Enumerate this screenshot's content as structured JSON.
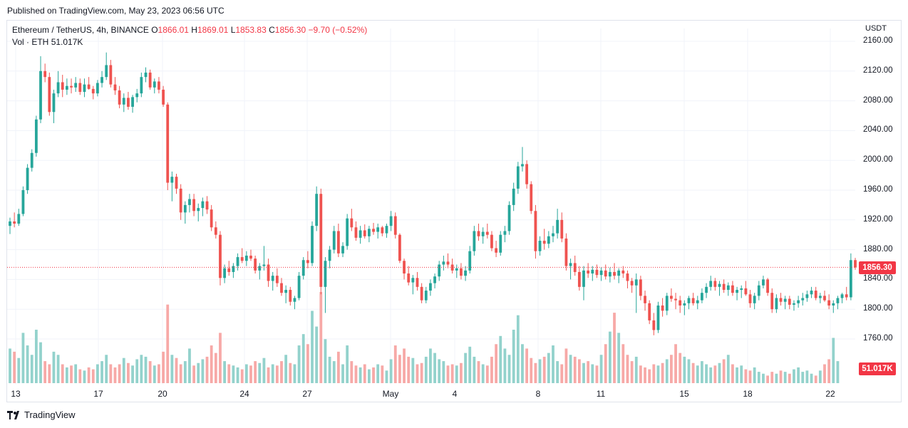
{
  "header": {
    "published": "Published on TradingView.com, May 23, 2023 06:56 UTC"
  },
  "legend": {
    "symbol": "Ethereum / TetherUS, 4h, BINANCE",
    "o_label": "O",
    "o_value": "1866.01",
    "h_label": "H",
    "h_value": "1869.01",
    "l_label": "L",
    "l_value": "1853.83",
    "c_label": "C",
    "c_value": "1856.30",
    "change": "−9.70 (−0.52%)",
    "vol_label": "Vol · ETH",
    "vol_value": "51.017K"
  },
  "axis": {
    "currency": "USDT"
  },
  "price_tag": "1856.30",
  "vol_tag": "51.017K",
  "footer": {
    "brand": "TradingView"
  },
  "colors": {
    "up": "#26a69a",
    "down": "#ef5350",
    "up_vol": "#93d2cc",
    "down_vol": "#f7a9a7",
    "grid": "#f0f3fa",
    "last_price": "#f23645"
  },
  "chart_data": {
    "type": "candlestick",
    "y_ticks": [
      "2160.00",
      "2120.00",
      "2080.00",
      "2040.00",
      "2000.00",
      "1960.00",
      "1920.00",
      "1880.00",
      "1840.00",
      "1800.00",
      "1760.00"
    ],
    "ylim": [
      1720,
      2180
    ],
    "x_ticks": [
      "13",
      "17",
      "20",
      "24",
      "27",
      "May",
      "4",
      "8",
      "11",
      "15",
      "18",
      "22"
    ],
    "last_price": 1856.3,
    "ohlc": [
      [
        1912,
        1923,
        1901,
        1918
      ],
      [
        1918,
        1930,
        1910,
        1915
      ],
      [
        1915,
        1935,
        1912,
        1928
      ],
      [
        1928,
        1965,
        1925,
        1960
      ],
      [
        1960,
        1995,
        1955,
        1990
      ],
      [
        1990,
        2015,
        1985,
        2010
      ],
      [
        2010,
        2060,
        2005,
        2055
      ],
      [
        2055,
        2140,
        2050,
        2120
      ],
      [
        2120,
        2130,
        2105,
        2112
      ],
      [
        2112,
        2118,
        2060,
        2065
      ],
      [
        2065,
        2095,
        2050,
        2090
      ],
      [
        2090,
        2120,
        2085,
        2105
      ],
      [
        2105,
        2115,
        2085,
        2095
      ],
      [
        2095,
        2110,
        2088,
        2100
      ],
      [
        2100,
        2110,
        2090,
        2098
      ],
      [
        2098,
        2112,
        2092,
        2104
      ],
      [
        2104,
        2110,
        2088,
        2092
      ],
      [
        2092,
        2110,
        2085,
        2102
      ],
      [
        2102,
        2112,
        2095,
        2096
      ],
      [
        2096,
        2100,
        2082,
        2090
      ],
      [
        2090,
        2108,
        2086,
        2104
      ],
      [
        2104,
        2120,
        2098,
        2112
      ],
      [
        2112,
        2145,
        2108,
        2128
      ],
      [
        2128,
        2135,
        2098,
        2102
      ],
      [
        2102,
        2112,
        2088,
        2094
      ],
      [
        2094,
        2100,
        2070,
        2075
      ],
      [
        2075,
        2090,
        2065,
        2084
      ],
      [
        2084,
        2092,
        2068,
        2072
      ],
      [
        2072,
        2088,
        2064,
        2085
      ],
      [
        2085,
        2096,
        2078,
        2090
      ],
      [
        2090,
        2118,
        2085,
        2112
      ],
      [
        2112,
        2125,
        2105,
        2118
      ],
      [
        2118,
        2122,
        2095,
        2098
      ],
      [
        2098,
        2110,
        2090,
        2106
      ],
      [
        2106,
        2112,
        2090,
        2095
      ],
      [
        2095,
        2100,
        2072,
        2075
      ],
      [
        2075,
        2078,
        1960,
        1970
      ],
      [
        1970,
        1985,
        1945,
        1978
      ],
      [
        1978,
        1982,
        1955,
        1962
      ],
      [
        1962,
        1968,
        1920,
        1930
      ],
      [
        1930,
        1945,
        1915,
        1940
      ],
      [
        1940,
        1955,
        1930,
        1948
      ],
      [
        1948,
        1955,
        1925,
        1932
      ],
      [
        1932,
        1942,
        1918,
        1936
      ],
      [
        1936,
        1950,
        1925,
        1945
      ],
      [
        1945,
        1952,
        1928,
        1934
      ],
      [
        1934,
        1940,
        1905,
        1910
      ],
      [
        1910,
        1918,
        1895,
        1900
      ],
      [
        1900,
        1905,
        1832,
        1842
      ],
      [
        1842,
        1860,
        1835,
        1855
      ],
      [
        1855,
        1865,
        1845,
        1850
      ],
      [
        1850,
        1862,
        1842,
        1858
      ],
      [
        1858,
        1875,
        1852,
        1870
      ],
      [
        1870,
        1882,
        1862,
        1865
      ],
      [
        1865,
        1878,
        1858,
        1872
      ],
      [
        1872,
        1880,
        1865,
        1868
      ],
      [
        1868,
        1872,
        1848,
        1852
      ],
      [
        1852,
        1862,
        1840,
        1858
      ],
      [
        1858,
        1885,
        1852,
        1860
      ],
      [
        1860,
        1868,
        1830,
        1838
      ],
      [
        1838,
        1850,
        1825,
        1845
      ],
      [
        1845,
        1855,
        1830,
        1835
      ],
      [
        1835,
        1842,
        1818,
        1822
      ],
      [
        1822,
        1832,
        1808,
        1826
      ],
      [
        1826,
        1830,
        1805,
        1810
      ],
      [
        1810,
        1818,
        1800,
        1815
      ],
      [
        1815,
        1850,
        1812,
        1845
      ],
      [
        1845,
        1870,
        1840,
        1866
      ],
      [
        1866,
        1878,
        1855,
        1862
      ],
      [
        1862,
        1918,
        1858,
        1912
      ],
      [
        1912,
        1965,
        1905,
        1955
      ],
      [
        1955,
        1962,
        1820,
        1830
      ],
      [
        1830,
        1870,
        1795,
        1865
      ],
      [
        1865,
        1885,
        1855,
        1880
      ],
      [
        1880,
        1912,
        1875,
        1905
      ],
      [
        1905,
        1915,
        1870,
        1875
      ],
      [
        1875,
        1890,
        1870,
        1885
      ],
      [
        1885,
        1928,
        1880,
        1922
      ],
      [
        1922,
        1935,
        1905,
        1910
      ],
      [
        1910,
        1918,
        1892,
        1896
      ],
      [
        1896,
        1912,
        1888,
        1906
      ],
      [
        1906,
        1914,
        1895,
        1898
      ],
      [
        1898,
        1912,
        1890,
        1908
      ],
      [
        1908,
        1916,
        1900,
        1904
      ],
      [
        1904,
        1915,
        1895,
        1910
      ],
      [
        1910,
        1912,
        1898,
        1902
      ],
      [
        1902,
        1915,
        1896,
        1912
      ],
      [
        1912,
        1932,
        1905,
        1925
      ],
      [
        1925,
        1930,
        1895,
        1900
      ],
      [
        1900,
        1902,
        1862,
        1865
      ],
      [
        1865,
        1868,
        1840,
        1848
      ],
      [
        1848,
        1858,
        1832,
        1836
      ],
      [
        1836,
        1846,
        1820,
        1842
      ],
      [
        1842,
        1850,
        1825,
        1830
      ],
      [
        1830,
        1835,
        1808,
        1812
      ],
      [
        1812,
        1830,
        1808,
        1825
      ],
      [
        1825,
        1840,
        1818,
        1835
      ],
      [
        1835,
        1848,
        1828,
        1844
      ],
      [
        1844,
        1865,
        1838,
        1860
      ],
      [
        1860,
        1872,
        1852,
        1864
      ],
      [
        1864,
        1875,
        1855,
        1860
      ],
      [
        1860,
        1868,
        1848,
        1852
      ],
      [
        1852,
        1860,
        1842,
        1855
      ],
      [
        1855,
        1862,
        1840,
        1845
      ],
      [
        1845,
        1858,
        1838,
        1852
      ],
      [
        1852,
        1885,
        1848,
        1878
      ],
      [
        1878,
        1912,
        1872,
        1905
      ],
      [
        1905,
        1915,
        1892,
        1898
      ],
      [
        1898,
        1910,
        1888,
        1904
      ],
      [
        1904,
        1915,
        1895,
        1900
      ],
      [
        1900,
        1905,
        1878,
        1882
      ],
      [
        1882,
        1892,
        1870,
        1876
      ],
      [
        1876,
        1905,
        1872,
        1900
      ],
      [
        1900,
        1912,
        1890,
        1905
      ],
      [
        1905,
        1945,
        1900,
        1940
      ],
      [
        1940,
        1970,
        1932,
        1962
      ],
      [
        1962,
        1998,
        1955,
        1992
      ],
      [
        1992,
        2018,
        1985,
        1995
      ],
      [
        1995,
        2000,
        1962,
        1968
      ],
      [
        1968,
        1972,
        1928,
        1932
      ],
      [
        1932,
        1940,
        1868,
        1878
      ],
      [
        1878,
        1898,
        1872,
        1892
      ],
      [
        1892,
        1908,
        1880,
        1888
      ],
      [
        1888,
        1905,
        1882,
        1898
      ],
      [
        1898,
        1912,
        1890,
        1902
      ],
      [
        1902,
        1935,
        1895,
        1920
      ],
      [
        1920,
        1930,
        1890,
        1895
      ],
      [
        1895,
        1902,
        1852,
        1858
      ],
      [
        1858,
        1868,
        1840,
        1862
      ],
      [
        1862,
        1872,
        1845,
        1850
      ],
      [
        1850,
        1858,
        1825,
        1830
      ],
      [
        1830,
        1858,
        1812,
        1852
      ],
      [
        1852,
        1862,
        1842,
        1848
      ],
      [
        1848,
        1858,
        1838,
        1853
      ],
      [
        1853,
        1860,
        1842,
        1846
      ],
      [
        1846,
        1856,
        1838,
        1852
      ],
      [
        1852,
        1860,
        1840,
        1844
      ],
      [
        1844,
        1856,
        1836,
        1850
      ],
      [
        1850,
        1862,
        1840,
        1845
      ],
      [
        1845,
        1855,
        1835,
        1852
      ],
      [
        1852,
        1858,
        1842,
        1848
      ],
      [
        1848,
        1852,
        1828,
        1838
      ],
      [
        1838,
        1842,
        1822,
        1832
      ],
      [
        1832,
        1848,
        1795,
        1840
      ],
      [
        1840,
        1845,
        1812,
        1818
      ],
      [
        1818,
        1825,
        1798,
        1808
      ],
      [
        1808,
        1812,
        1780,
        1785
      ],
      [
        1785,
        1795,
        1765,
        1772
      ],
      [
        1772,
        1810,
        1768,
        1805
      ],
      [
        1805,
        1815,
        1790,
        1798
      ],
      [
        1798,
        1822,
        1792,
        1818
      ],
      [
        1818,
        1828,
        1810,
        1814
      ],
      [
        1814,
        1822,
        1800,
        1812
      ],
      [
        1812,
        1818,
        1795,
        1805
      ],
      [
        1805,
        1812,
        1792,
        1808
      ],
      [
        1808,
        1818,
        1800,
        1815
      ],
      [
        1815,
        1822,
        1805,
        1808
      ],
      [
        1808,
        1818,
        1800,
        1812
      ],
      [
        1812,
        1828,
        1808,
        1822
      ],
      [
        1822,
        1835,
        1815,
        1830
      ],
      [
        1830,
        1845,
        1825,
        1838
      ],
      [
        1838,
        1842,
        1825,
        1830
      ],
      [
        1830,
        1838,
        1818,
        1834
      ],
      [
        1834,
        1840,
        1822,
        1826
      ],
      [
        1826,
        1836,
        1818,
        1832
      ],
      [
        1832,
        1838,
        1818,
        1822
      ],
      [
        1822,
        1830,
        1812,
        1826
      ],
      [
        1826,
        1832,
        1815,
        1828
      ],
      [
        1828,
        1838,
        1818,
        1820
      ],
      [
        1820,
        1826,
        1802,
        1808
      ],
      [
        1808,
        1822,
        1800,
        1818
      ],
      [
        1818,
        1838,
        1812,
        1832
      ],
      [
        1832,
        1845,
        1828,
        1840
      ],
      [
        1840,
        1842,
        1818,
        1822
      ],
      [
        1822,
        1828,
        1795,
        1800
      ],
      [
        1800,
        1820,
        1795,
        1815
      ],
      [
        1815,
        1822,
        1805,
        1810
      ],
      [
        1810,
        1818,
        1800,
        1814
      ],
      [
        1814,
        1818,
        1800,
        1806
      ],
      [
        1806,
        1812,
        1798,
        1808
      ],
      [
        1808,
        1818,
        1802,
        1812
      ],
      [
        1812,
        1822,
        1805,
        1815
      ],
      [
        1815,
        1825,
        1810,
        1820
      ],
      [
        1820,
        1830,
        1815,
        1825
      ],
      [
        1825,
        1830,
        1812,
        1815
      ],
      [
        1815,
        1822,
        1808,
        1818
      ],
      [
        1818,
        1825,
        1810,
        1812
      ],
      [
        1812,
        1820,
        1800,
        1805
      ],
      [
        1805,
        1812,
        1795,
        1808
      ],
      [
        1808,
        1818,
        1800,
        1815
      ],
      [
        1815,
        1822,
        1808,
        1820
      ],
      [
        1820,
        1830,
        1812,
        1816
      ],
      [
        1816,
        1875,
        1812,
        1866
      ],
      [
        1866,
        1869,
        1853,
        1856
      ]
    ],
    "volume": [
      55,
      50,
      40,
      80,
      60,
      45,
      85,
      65,
      35,
      30,
      50,
      45,
      30,
      25,
      28,
      30,
      22,
      20,
      25,
      22,
      30,
      35,
      45,
      30,
      25,
      30,
      40,
      32,
      28,
      38,
      45,
      42,
      35,
      28,
      30,
      50,
      125,
      45,
      40,
      30,
      35,
      55,
      28,
      32,
      38,
      42,
      60,
      48,
      80,
      35,
      30,
      28,
      25,
      22,
      30,
      28,
      35,
      32,
      40,
      25,
      30,
      28,
      35,
      45,
      32,
      30,
      60,
      78,
      62,
      115,
      90,
      145,
      70,
      42,
      35,
      50,
      30,
      60,
      35,
      28,
      25,
      30,
      22,
      25,
      30,
      28,
      20,
      38,
      60,
      45,
      55,
      42,
      40,
      30,
      32,
      42,
      55,
      48,
      38,
      35,
      28,
      30,
      28,
      32,
      48,
      58,
      42,
      35,
      30,
      28,
      42,
      62,
      75,
      55,
      45,
      85,
      108,
      62,
      55,
      40,
      32,
      38,
      42,
      48,
      60,
      35,
      30,
      55,
      45,
      42,
      38,
      32,
      35,
      30,
      28,
      45,
      62,
      82,
      112,
      80,
      62,
      45,
      35,
      42,
      28,
      25,
      22,
      30,
      28,
      32,
      38,
      45,
      62,
      48,
      42,
      38,
      32,
      28,
      35,
      30,
      25,
      28,
      32,
      38,
      45,
      30,
      25,
      28,
      22,
      20,
      25,
      18,
      15,
      12,
      18,
      15,
      20,
      18,
      15,
      22,
      25,
      18,
      20,
      15,
      12,
      20,
      30,
      38,
      72,
      35
    ]
  }
}
